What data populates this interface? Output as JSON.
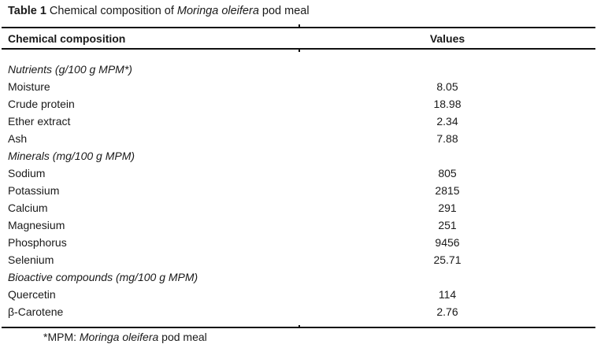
{
  "caption": {
    "label": "Table 1",
    "text_pre": " Chemical composition of ",
    "italic": "Moringa oleifera",
    "text_post": " pod meal"
  },
  "columns": {
    "label": "Chemical composition",
    "value": "Values"
  },
  "rows": [
    {
      "type": "section",
      "label": "Nutrients (g/100 g MPM*)",
      "value": ""
    },
    {
      "type": "data",
      "label": "Moisture",
      "value": "8.05"
    },
    {
      "type": "data",
      "label": "Crude protein",
      "value": "18.98"
    },
    {
      "type": "data",
      "label": "Ether extract",
      "value": "2.34"
    },
    {
      "type": "data",
      "label": "Ash",
      "value": "7.88"
    },
    {
      "type": "section",
      "label": "Minerals (mg/100 g MPM)",
      "value": ""
    },
    {
      "type": "data",
      "label": "Sodium",
      "value": "805"
    },
    {
      "type": "data",
      "label": "Potassium",
      "value": "2815"
    },
    {
      "type": "data",
      "label": "Calcium",
      "value": "291"
    },
    {
      "type": "data",
      "label": "Magnesium",
      "value": "251"
    },
    {
      "type": "data",
      "label": "Phosphorus",
      "value": "9456"
    },
    {
      "type": "data",
      "label": "Selenium",
      "value": "25.71"
    },
    {
      "type": "section",
      "label": "Bioactive compounds (mg/100 g MPM)",
      "value": ""
    },
    {
      "type": "data",
      "label": "Quercetin",
      "value": "114"
    },
    {
      "type": "data",
      "label": "β-Carotene",
      "value": "2.76"
    }
  ],
  "footnote": {
    "text_pre": "*MPM: ",
    "italic": "Moringa oleifera",
    "text_post": " pod meal"
  },
  "colors": {
    "text": "#1a1a1a",
    "rule": "#111111",
    "background": "#ffffff"
  }
}
